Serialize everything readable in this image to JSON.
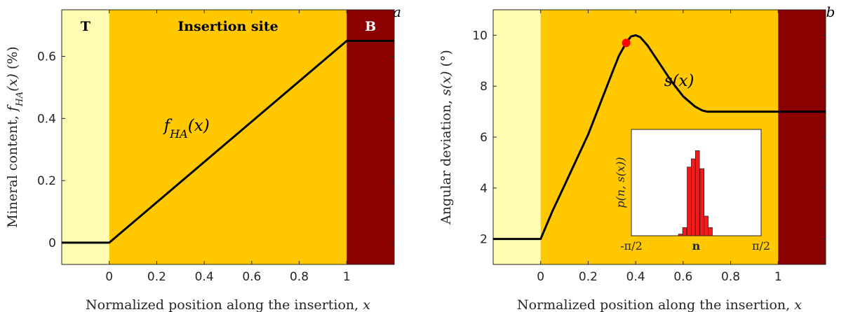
{
  "colors": {
    "tendon": "#fffbb3",
    "insertion": "#ffc800",
    "bone": "#8b0000",
    "curve": "#000000",
    "marker": "#ff0000",
    "inset_bar": "#ee1c1c"
  },
  "chart_data": [
    {
      "type": "line",
      "panel_letter": "a",
      "xlabel": "Normalized position along the insertion, x",
      "ylabel": "Mineral content, f_HA(x) (%)",
      "xlim": [
        -0.2,
        1.2
      ],
      "ylim": [
        -0.07,
        0.75
      ],
      "xticks": [
        0,
        0.2,
        0.4,
        0.6,
        0.8,
        1
      ],
      "xtick_labels": [
        "0",
        "0.2",
        "0.4",
        "0.6",
        "0.8",
        "1"
      ],
      "yticks": [
        0,
        0.2,
        0.4,
        0.6
      ],
      "ytick_labels": [
        "0",
        "0.2",
        "0.4",
        "0.6"
      ],
      "regions": [
        {
          "name": "T",
          "x0": -0.2,
          "x1": 0,
          "color_key": "tendon"
        },
        {
          "name": "Insertion site",
          "x0": 0,
          "x1": 1,
          "color_key": "insertion"
        },
        {
          "name": "B",
          "x0": 1,
          "x1": 1.2,
          "color_key": "bone"
        }
      ],
      "series": [
        {
          "name": "f_HA(x)",
          "x": [
            -0.2,
            0,
            1,
            1.2
          ],
          "y": [
            0,
            0,
            0.65,
            0.65
          ]
        }
      ],
      "curve_label": {
        "text": "f_HA(x)",
        "x": 0.23,
        "y": 0.36
      }
    },
    {
      "type": "line",
      "panel_letter": "b",
      "xlabel": "Normalized position along the insertion, x",
      "ylabel": "Angular deviation, s(x) (°)",
      "xlim": [
        -0.2,
        1.2
      ],
      "ylim": [
        1,
        11
      ],
      "xticks": [
        0,
        0.2,
        0.4,
        0.6,
        0.8,
        1
      ],
      "xtick_labels": [
        "0",
        "0.2",
        "0.4",
        "0.6",
        "0.8",
        "1"
      ],
      "yticks": [
        2,
        4,
        6,
        8,
        10
      ],
      "ytick_labels": [
        "2",
        "4",
        "6",
        "8",
        "10"
      ],
      "regions": [
        {
          "name": "",
          "x0": -0.2,
          "x1": 0,
          "color_key": "tendon"
        },
        {
          "name": "",
          "x0": 0,
          "x1": 1,
          "color_key": "insertion"
        },
        {
          "name": "",
          "x0": 1,
          "x1": 1.2,
          "color_key": "bone"
        }
      ],
      "series": [
        {
          "name": "s(x)",
          "x": [
            -0.2,
            0,
            0.05,
            0.1,
            0.15,
            0.2,
            0.25,
            0.3,
            0.33,
            0.36,
            0.38,
            0.4,
            0.42,
            0.45,
            0.5,
            0.55,
            0.6,
            0.65,
            0.68,
            0.7,
            0.8,
            0.9,
            1,
            1.2
          ],
          "y": [
            2,
            2,
            3.1,
            4.1,
            5.1,
            6.1,
            7.3,
            8.5,
            9.2,
            9.7,
            9.95,
            10,
            9.92,
            9.6,
            8.9,
            8.2,
            7.6,
            7.2,
            7.05,
            7,
            7,
            7,
            7,
            7
          ]
        }
      ],
      "marker": {
        "x": 0.36,
        "y": 9.7
      },
      "curve_label": {
        "text": "s(x)",
        "x": 0.52,
        "y": 8.0
      },
      "inset": {
        "type": "bar",
        "ylabel": "p(n, s(x))",
        "xlabel": "n",
        "xtick_labels": [
          "-π/2",
          "π/2"
        ],
        "xlim": [
          -1.5708,
          1.5708
        ],
        "bins": [
          -0.38,
          -0.28,
          -0.17,
          -0.07,
          0.03,
          0.14,
          0.24,
          0.34
        ],
        "values": [
          0.01,
          0.05,
          0.42,
          0.47,
          0.52,
          0.41,
          0.12,
          0.05
        ],
        "ylim": [
          0,
          0.65
        ]
      }
    }
  ]
}
